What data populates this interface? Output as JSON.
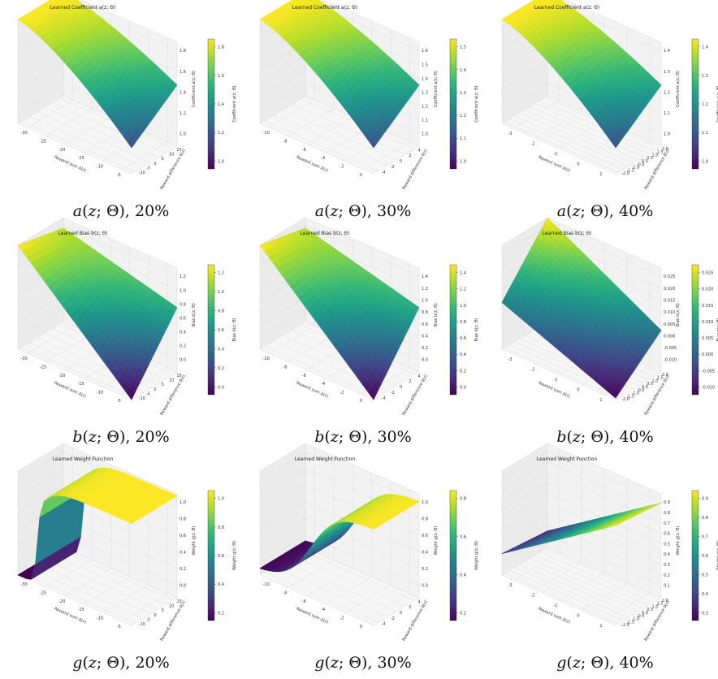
{
  "colors": {
    "viridis": [
      "#440154",
      "#482878",
      "#3e4a89",
      "#31688e",
      "#26828e",
      "#1f9e89",
      "#35b779",
      "#6ece58",
      "#b5de2b",
      "#fde725"
    ],
    "pane": "#f2f2f2",
    "grid": "#d8d8d8"
  },
  "chart_data": [
    {
      "type": "surface3d",
      "title": "Learned Coefficient a(z; Θ)",
      "xlabel": "Reward sum Δ(z)",
      "ylabel": "Reward difference δ(z)",
      "zlabel": "Coefficient a(z; Θ)",
      "xticks": [
        "-30",
        "-25",
        "-20",
        "-15",
        "-10",
        "-5"
      ],
      "yticks": [
        "-10",
        "-5",
        "0",
        "5",
        "10",
        "15"
      ],
      "zticks": [
        "1.0",
        "1.2",
        "1.4",
        "1.6",
        "1.8"
      ],
      "cbar_ticks": [
        "1.0",
        "1.2",
        "1.4",
        "1.6",
        "1.8"
      ],
      "xlim": [
        -32,
        0
      ],
      "ylim": [
        -10,
        15
      ],
      "zlim": [
        0.95,
        1.95
      ],
      "surface": {
        "shape": "a",
        "z_min": 0.95,
        "z_max": 1.95
      },
      "caption": {
        "func": "a",
        "pct": "20%"
      }
    },
    {
      "type": "surface3d",
      "title": "Learned Coefficient a(z; Θ)",
      "xlabel": "Reward sum Δ(z)",
      "ylabel": "Reward difference δ(z)",
      "zlabel": "Coefficient a(z; Θ)",
      "xticks": [
        "-10",
        "-8",
        "-6",
        "-4",
        "-2",
        "0"
      ],
      "yticks": [
        "-4",
        "-2",
        "0",
        "2",
        "4"
      ],
      "zticks": [
        "1.0",
        "1.1",
        "1.2",
        "1.3",
        "1.4",
        "1.5",
        "1.6"
      ],
      "cbar_ticks": [
        "1.0",
        "1.1",
        "1.2",
        "1.3",
        "1.4",
        "1.5"
      ],
      "xlim": [
        -11,
        1
      ],
      "ylim": [
        -4,
        5
      ],
      "zlim": [
        0.97,
        1.58
      ],
      "surface": {
        "shape": "a",
        "z_min": 0.97,
        "z_max": 1.58
      },
      "caption": {
        "func": "a",
        "pct": "30%"
      }
    },
    {
      "type": "surface3d",
      "title": "Learned Coefficient a(z; Θ)",
      "xlabel": "Reward sum Δ(z)",
      "ylabel": "Reward difference δ(z)",
      "zlabel": "Coefficient a(z; Θ)",
      "xticks": [
        "-3",
        "-2",
        "-1",
        "0",
        "1"
      ],
      "yticks": [
        "-2.0",
        "-1.5",
        "-1.0",
        "-0.5",
        "0.0",
        "0.5",
        "1.0",
        "1.5",
        "2.0"
      ],
      "zticks": [
        "1.0",
        "1.1",
        "1.2",
        "1.3",
        "1.4"
      ],
      "cbar_ticks": [
        "1.0",
        "1.1",
        "1.2",
        "1.3",
        "1.4"
      ],
      "xlim": [
        -3.6,
        1.2
      ],
      "ylim": [
        -2,
        2
      ],
      "zlim": [
        0.95,
        1.47
      ],
      "surface": {
        "shape": "a",
        "z_min": 0.95,
        "z_max": 1.47
      },
      "caption": {
        "func": "a",
        "pct": "40%"
      }
    },
    {
      "type": "surface3d",
      "title": "Learned Bias b(z; Θ)",
      "xlabel": "Reward sum Δ(z)",
      "ylabel": "Reward difference δ(z)",
      "zlabel": "Bias b(z; Θ)",
      "xticks": [
        "-30",
        "-25",
        "-20",
        "-15",
        "-10",
        "-5"
      ],
      "yticks": [
        "-10",
        "-5",
        "0",
        "5",
        "10",
        "15"
      ],
      "zticks": [
        "0.0",
        "0.2",
        "0.4",
        "0.6",
        "0.8",
        "1.0",
        "1.2"
      ],
      "cbar_ticks": [
        "0.0",
        "0.2",
        "0.4",
        "0.6",
        "0.8",
        "1.0",
        "1.2"
      ],
      "xlim": [
        -32,
        0
      ],
      "ylim": [
        -10,
        15
      ],
      "zlim": [
        -0.1,
        1.25
      ],
      "surface": {
        "shape": "b",
        "z_min": -0.1,
        "z_max": 1.25
      },
      "caption": {
        "func": "b",
        "pct": "20%"
      }
    },
    {
      "type": "surface3d",
      "title": "Learned Bias b(z; Θ)",
      "xlabel": "Reward sum Δ(z)",
      "ylabel": "Reward difference δ(z)",
      "zlabel": "Bias b(z; Θ)",
      "xticks": [
        "-10",
        "-8",
        "-6",
        "-4",
        "-2",
        "0"
      ],
      "yticks": [
        "-4",
        "-2",
        "0",
        "2",
        "4"
      ],
      "zticks": [
        "0.0",
        "0.2",
        "0.4",
        "0.6",
        "0.8",
        "1.0",
        "1.2",
        "1.4"
      ],
      "cbar_ticks": [
        "0.0",
        "0.2",
        "0.4",
        "0.6",
        "0.8",
        "1.0",
        "1.2",
        "1.4"
      ],
      "xlim": [
        -11,
        1
      ],
      "ylim": [
        -4,
        5
      ],
      "zlim": [
        -0.05,
        1.45
      ],
      "surface": {
        "shape": "b",
        "z_min": -0.05,
        "z_max": 1.45
      },
      "caption": {
        "func": "b",
        "pct": "30%"
      }
    },
    {
      "type": "surface3d",
      "title": "Learned Bias b(z; Θ)",
      "xlabel": "Reward sum Δ(z)",
      "ylabel": "Reward difference δ(z)",
      "zlabel": "Bias b(z; Θ)",
      "xticks": [
        "-3",
        "-2",
        "-1",
        "0",
        "1"
      ],
      "yticks": [
        "-2.0",
        "-1.5",
        "-1.0",
        "-0.5",
        "0.0",
        "0.5",
        "1.0",
        "1.5",
        "2.0"
      ],
      "zticks": [
        "-0.010",
        "-0.005",
        "0.000",
        "0.005",
        "0.010",
        "0.015",
        "0.020",
        "0.025"
      ],
      "cbar_ticks": [
        "-0.010",
        "-0.005",
        "0.000",
        "0.005",
        "0.010",
        "0.015",
        "0.020",
        "0.025"
      ],
      "xlim": [
        -3.6,
        1.2
      ],
      "ylim": [
        -2,
        2
      ],
      "zlim": [
        -0.012,
        0.027
      ],
      "surface": {
        "shape": "b3",
        "z_min": -0.012,
        "z_max": 0.027
      },
      "caption": {
        "func": "b",
        "pct": "40%"
      }
    },
    {
      "type": "surface3d",
      "title": "Learned Weight Function",
      "xlabel": "Reward sum Δ(z)",
      "ylabel": "Reward difference δ(z)",
      "zlabel": "Weight g(z; Θ)",
      "xticks": [
        "-30",
        "-25",
        "-20",
        "-15",
        "-10",
        "-5"
      ],
      "yticks": [
        "-10",
        "-5",
        "0",
        "5",
        "10",
        "15"
      ],
      "zticks": [
        "0.0",
        "0.2",
        "0.4",
        "0.6",
        "0.8",
        "1.0"
      ],
      "cbar_ticks": [
        "0.2",
        "0.4",
        "0.6",
        "0.8",
        "1.0"
      ],
      "xlim": [
        -32,
        0
      ],
      "ylim": [
        -10,
        15
      ],
      "zlim": [
        0.0,
        1.02
      ],
      "surface": {
        "shape": "g1",
        "z_min": 0.0,
        "z_max": 1.0
      },
      "caption": {
        "func": "g",
        "pct": "20%"
      }
    },
    {
      "type": "surface3d",
      "title": "Learned Weight Function",
      "xlabel": "Reward sum Δ(z)",
      "ylabel": "Reward difference δ(z)",
      "zlabel": "Weight g(z; Θ)",
      "xticks": [
        "-10",
        "-8",
        "-6",
        "-4",
        "-2",
        "0"
      ],
      "yticks": [
        "-4",
        "-2",
        "0",
        "2",
        "4"
      ],
      "zticks": [
        "0.0",
        "0.2",
        "0.4",
        "0.6",
        "0.8",
        "1.0"
      ],
      "cbar_ticks": [
        "0.2",
        "0.4",
        "0.6",
        "0.8"
      ],
      "xlim": [
        -11,
        1
      ],
      "ylim": [
        -4,
        5
      ],
      "zlim": [
        0.0,
        1.02
      ],
      "surface": {
        "shape": "g2",
        "z_min": 0.05,
        "z_max": 0.95
      },
      "caption": {
        "func": "g",
        "pct": "30%"
      }
    },
    {
      "type": "surface3d",
      "title": "Learned Weight Function",
      "xlabel": "Reward sum Δ(z)",
      "ylabel": "Reward difference δ(z)",
      "zlabel": "Weight g(z; Θ)",
      "xticks": [
        "-3",
        "-2",
        "-1",
        "0",
        "1"
      ],
      "yticks": [
        "-2.0",
        "-1.5",
        "-1.0",
        "-0.5",
        "0.0",
        "0.5",
        "1.0",
        "1.5",
        "2.0"
      ],
      "zticks": [
        "0.1",
        "0.2",
        "0.3",
        "0.4",
        "0.5",
        "0.6",
        "0.7",
        "0.8",
        "0.9"
      ],
      "cbar_ticks": [
        "0.3",
        "0.4",
        "0.5",
        "0.6",
        "0.7",
        "0.8",
        "0.9"
      ],
      "xlim": [
        -3.6,
        1.2
      ],
      "ylim": [
        -2,
        2
      ],
      "zlim": [
        0.08,
        0.96
      ],
      "surface": {
        "shape": "g3",
        "z_min": 0.12,
        "z_max": 0.95
      },
      "caption": {
        "func": "g",
        "pct": "40%"
      }
    }
  ]
}
